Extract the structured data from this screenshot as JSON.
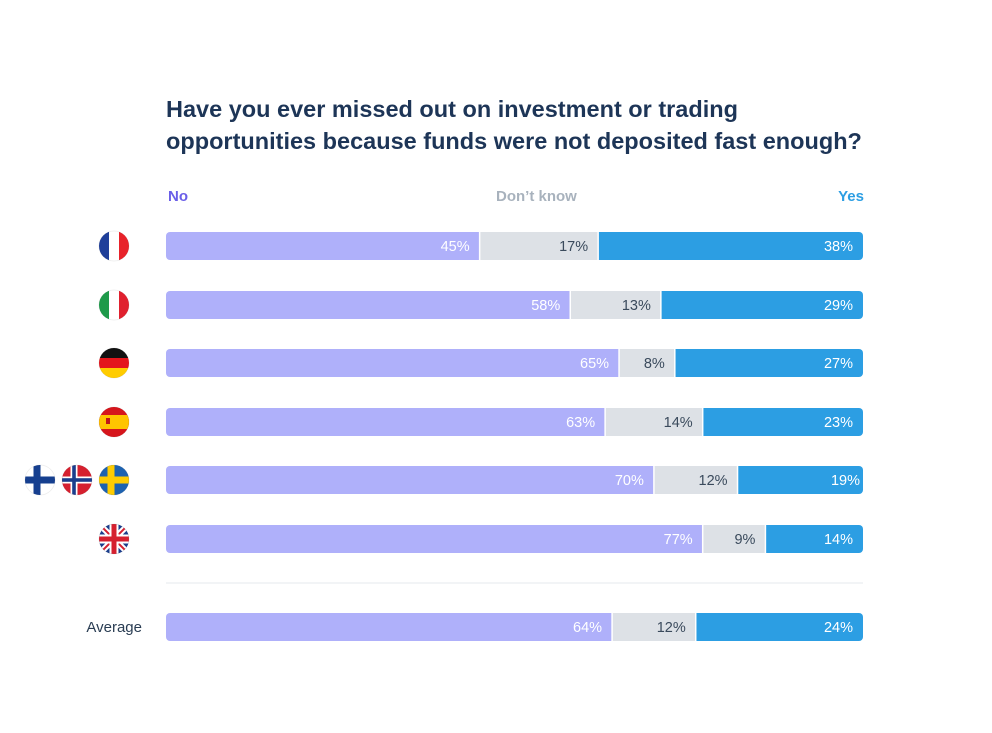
{
  "chart_data": {
    "type": "bar",
    "orientation": "horizontal-stacked-100",
    "title_lines": [
      "Have you ever missed out on investment or trading",
      "opportunities because funds were not deposited fast enough?"
    ],
    "legend": [
      {
        "name": "No",
        "color": "#6a5ee8"
      },
      {
        "name": "Don’t know",
        "color": "#a8b2bd"
      },
      {
        "name": "Yes",
        "color": "#2c9ee3"
      }
    ],
    "series_colors": [
      "#afb0fa",
      "#dde1e6",
      "#2c9ee3"
    ],
    "label_colors": [
      "#ffffff",
      "#3a4a5c",
      "#ffffff"
    ],
    "categories": [
      {
        "key": "france",
        "flags": [
          "france-flag-icon"
        ]
      },
      {
        "key": "italy",
        "flags": [
          "italy-flag-icon"
        ]
      },
      {
        "key": "germany",
        "flags": [
          "germany-flag-icon"
        ]
      },
      {
        "key": "spain",
        "flags": [
          "spain-flag-icon"
        ]
      },
      {
        "key": "nordics",
        "flags": [
          "finland-flag-icon",
          "norway-flag-icon",
          "sweden-flag-icon"
        ]
      },
      {
        "key": "uk",
        "flags": [
          "uk-flag-icon"
        ]
      },
      {
        "key": "average",
        "label": "Average"
      }
    ],
    "series": [
      {
        "name": "No",
        "values": [
          45,
          58,
          65,
          63,
          70,
          77,
          64
        ]
      },
      {
        "name": "Don’t know",
        "values": [
          17,
          13,
          8,
          14,
          12,
          9,
          12
        ]
      },
      {
        "name": "Yes",
        "values": [
          38,
          29,
          27,
          23,
          19,
          14,
          24
        ]
      }
    ],
    "value_suffix": "%",
    "xlim": [
      0,
      100
    ]
  }
}
